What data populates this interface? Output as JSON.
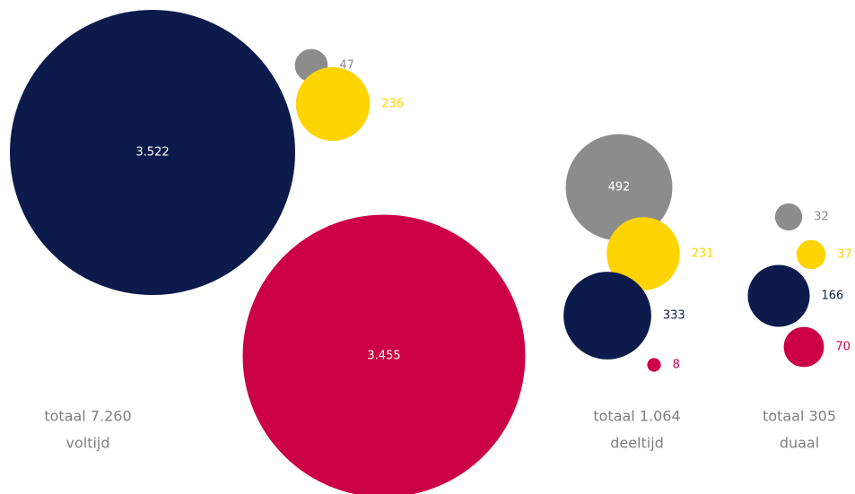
{
  "chart_data": {
    "type": "bubble",
    "colors": {
      "navy": "#0d1b4c",
      "crimson": "#cc0044",
      "gray": "#8c8c8c",
      "yellow": "#ffd400",
      "total_text": "#7f7f7f"
    },
    "groups": [
      {
        "name": "voltijd",
        "total_label": "totaal 7.260",
        "values": [
          {
            "label": "3.522",
            "value": 3522,
            "color": "navy",
            "label_position": "inside"
          },
          {
            "label": "3.455",
            "value": 3455,
            "color": "crimson",
            "label_position": "inside"
          },
          {
            "label": "47",
            "value": 47,
            "color": "gray",
            "label_position": "right"
          },
          {
            "label": "236",
            "value": 236,
            "color": "yellow",
            "label_position": "right"
          }
        ]
      },
      {
        "name": "deeltijd",
        "total_label": "totaal 1.064",
        "values": [
          {
            "label": "492",
            "value": 492,
            "color": "gray",
            "label_position": "inside"
          },
          {
            "label": "231",
            "value": 231,
            "color": "yellow",
            "label_position": "right"
          },
          {
            "label": "333",
            "value": 333,
            "color": "navy",
            "label_position": "right"
          },
          {
            "label": "8",
            "value": 8,
            "color": "crimson",
            "label_position": "right"
          }
        ]
      },
      {
        "name": "duaal",
        "total_label": "totaal 305",
        "values": [
          {
            "label": "32",
            "value": 32,
            "color": "gray",
            "label_position": "right"
          },
          {
            "label": "37",
            "value": 37,
            "color": "yellow",
            "label_position": "right"
          },
          {
            "label": "166",
            "value": 166,
            "color": "navy",
            "label_position": "right"
          },
          {
            "label": "70",
            "value": 70,
            "color": "crimson",
            "label_position": "right"
          }
        ]
      }
    ]
  }
}
